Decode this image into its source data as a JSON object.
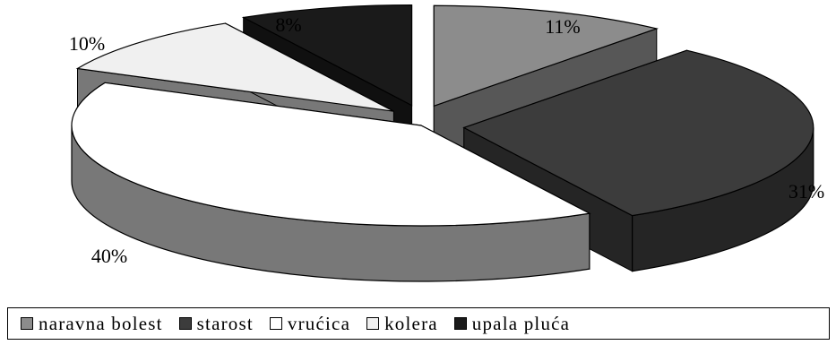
{
  "chart_data": {
    "type": "pie",
    "style": "3d-exploded",
    "title": "",
    "legend_position": "bottom",
    "slices": [
      {
        "name": "naravna bolest",
        "value": 11,
        "label": "11%",
        "color": "#8c8c8c"
      },
      {
        "name": "starost",
        "value": 31,
        "label": "31%",
        "color": "#3c3c3c"
      },
      {
        "name": "vrućica",
        "value": 40,
        "label": "40%",
        "color": "#ffffff"
      },
      {
        "name": "kolera",
        "value": 10,
        "label": "10%",
        "color": "#f0f0f0"
      },
      {
        "name": "upala pluća",
        "value": 8,
        "label": "8%",
        "color": "#1a1a1a"
      }
    ]
  },
  "legend": {
    "items": [
      {
        "label": "naravna bolest",
        "color": "#8c8c8c"
      },
      {
        "label": "starost",
        "color": "#3c3c3c"
      },
      {
        "label": "vrućica",
        "color": "#ffffff"
      },
      {
        "label": "kolera",
        "color": "#f0f0f0"
      },
      {
        "label": "upala pluća",
        "color": "#1a1a1a"
      }
    ]
  }
}
